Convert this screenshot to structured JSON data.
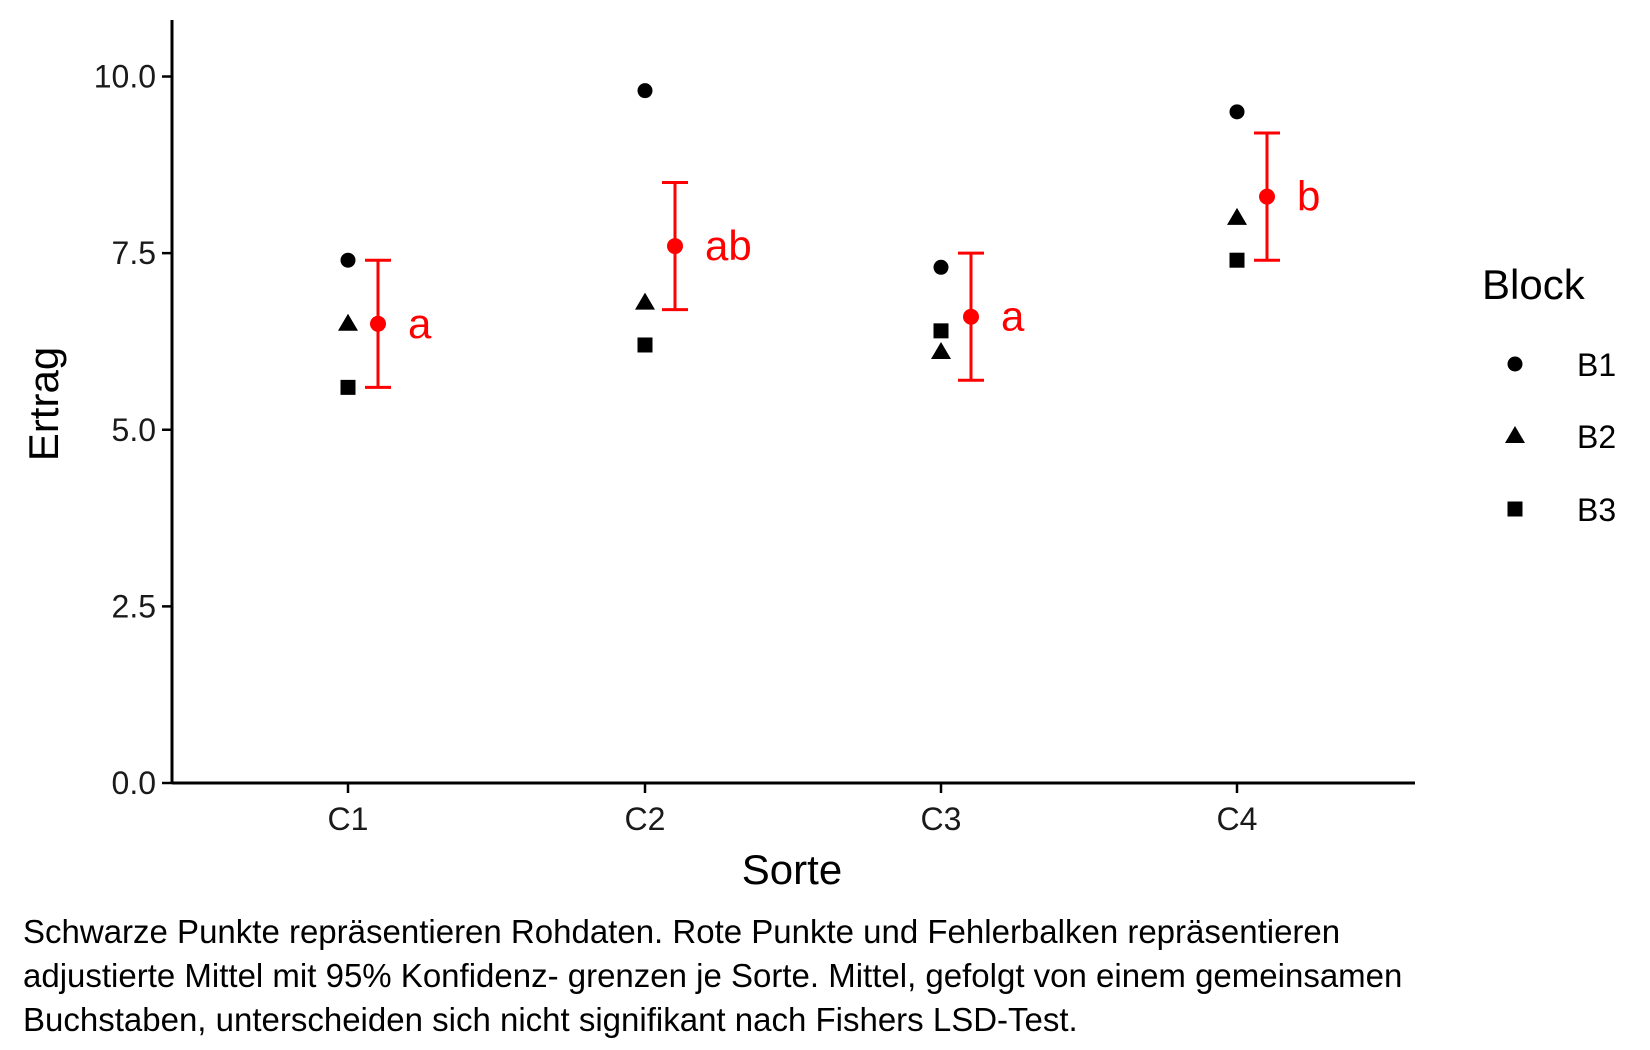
{
  "chart_data": {
    "type": "scatter",
    "xlabel": "Sorte",
    "ylabel": "Ertrag",
    "categories": [
      "C1",
      "C2",
      "C3",
      "C4"
    ],
    "ylim": [
      0,
      10.8
    ],
    "yticks": [
      0.0,
      2.5,
      5.0,
      7.5,
      10.0
    ],
    "ytick_labels": [
      "0.0",
      "2.5",
      "5.0",
      "7.5",
      "10.0"
    ],
    "grid": false,
    "legend": {
      "title": "Block",
      "placement": "right",
      "entries": [
        {
          "label": "B1",
          "shape": "circle"
        },
        {
          "label": "B2",
          "shape": "triangle"
        },
        {
          "label": "B3",
          "shape": "square"
        }
      ]
    },
    "raw_series": [
      {
        "name": "B1",
        "shape": "circle",
        "color": "#000000",
        "values": [
          7.4,
          9.8,
          7.3,
          9.5
        ]
      },
      {
        "name": "B2",
        "shape": "triangle",
        "color": "#000000",
        "values": [
          6.5,
          6.8,
          6.1,
          8.0
        ]
      },
      {
        "name": "B3",
        "shape": "square",
        "color": "#000000",
        "values": [
          5.6,
          6.2,
          6.4,
          7.4
        ]
      }
    ],
    "adjusted_means": {
      "color": "#ff0000",
      "mean": [
        6.5,
        7.6,
        6.6,
        8.3
      ],
      "lower": [
        5.6,
        6.7,
        5.7,
        7.4
      ],
      "upper": [
        7.4,
        8.5,
        7.5,
        9.2
      ],
      "letters": [
        "a",
        "ab",
        "a",
        "b"
      ]
    }
  },
  "caption": {
    "lines": [
      "Schwarze Punkte repräsentieren Rohdaten. Rote Punkte und Fehlerbalken repräsentieren",
      "adjustierte Mittel mit 95% Konfidenz- grenzen je Sorte. Mittel, gefolgt von einem gemeinsamen",
      "Buchstaben, unterscheiden sich nicht signifikant nach Fishers LSD-Test."
    ]
  }
}
